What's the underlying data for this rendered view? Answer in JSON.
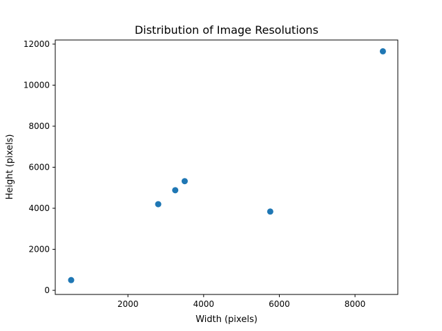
{
  "chart_data": {
    "type": "scatter",
    "title": "Distribution of Image Resolutions",
    "xlabel": "Width (pixels)",
    "ylabel": "Height (pixels)",
    "xlim": [
      80,
      9130
    ],
    "ylim": [
      -200,
      12200
    ],
    "xticks": [
      2000,
      4000,
      6000,
      8000
    ],
    "yticks": [
      0,
      2000,
      4000,
      6000,
      8000,
      10000,
      12000
    ],
    "grid": false,
    "points": [
      {
        "x": 500,
        "y": 500
      },
      {
        "x": 2800,
        "y": 4200
      },
      {
        "x": 3250,
        "y": 4880
      },
      {
        "x": 3500,
        "y": 5320
      },
      {
        "x": 5760,
        "y": 3840
      },
      {
        "x": 8736,
        "y": 11648
      }
    ],
    "marker_color": "#1f77b4"
  }
}
